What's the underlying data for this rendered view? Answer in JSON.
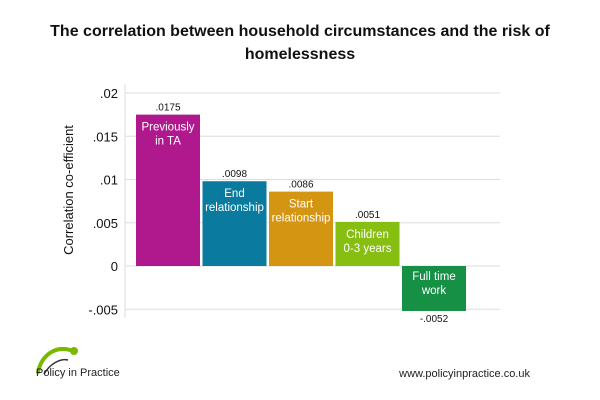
{
  "title": "The correlation between household circumstances and the risk of homelessness",
  "colors": {
    "previously_ta": "#b0188e",
    "end_relationship": "#0a7a9e",
    "start_relationship": "#d39512",
    "children": "#86be12",
    "full_time_work": "#159045",
    "grid": "#dddddd",
    "logo_green": "#7ab800",
    "logo_dark": "#333333"
  },
  "chart_data": {
    "type": "bar",
    "categories": [
      "Previously in TA",
      "End relationship",
      "Start relationship",
      "Children 0-3 years",
      "Full time work"
    ],
    "category_lines": [
      [
        "Previously",
        "in TA"
      ],
      [
        "End",
        "relationship"
      ],
      [
        "Start",
        "relationship"
      ],
      [
        "Children",
        "0-3 years"
      ],
      [
        "Full time",
        "work"
      ]
    ],
    "values": [
      0.0175,
      0.0098,
      0.0086,
      0.0051,
      -0.0052
    ],
    "data_labels": [
      ".0175",
      ".0098",
      ".0086",
      ".0051",
      "-.0052"
    ],
    "xlabel": "",
    "ylabel": "Correlation co-efficient",
    "ylim": [
      -0.006,
      0.021
    ],
    "yticks": [
      0.02,
      0.015,
      0.01,
      0.005,
      0,
      -0.005
    ],
    "ytick_labels": [
      ".02",
      ".015",
      ".01",
      ".005",
      "0",
      "-.005"
    ],
    "grid": true
  },
  "footer": {
    "logo_text": "Policy in Practice",
    "url": "www.policyinpractice.co.uk"
  }
}
